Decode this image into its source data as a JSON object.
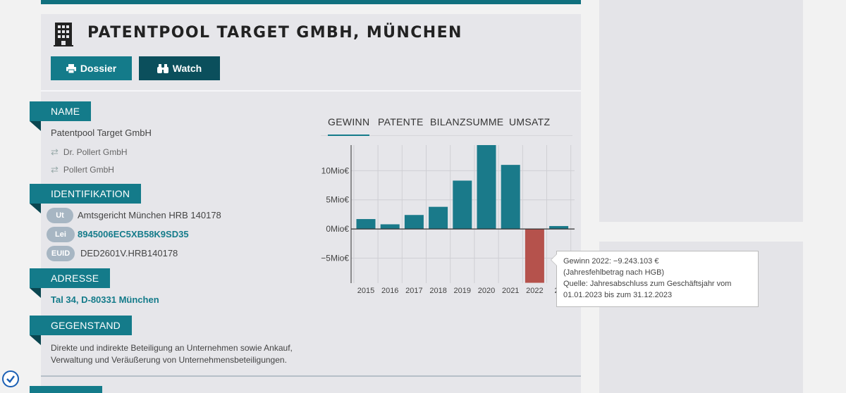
{
  "company": {
    "title": "PATENTPOOL TARGET GMBH, MÜNCHEN",
    "buttons": {
      "dossier": "Dossier",
      "watch": "Watch"
    }
  },
  "sections": {
    "name": {
      "label": "NAME",
      "current": "Patentpool Target GmbH",
      "former": [
        "Dr. Pollert GmbH",
        "Pollert GmbH"
      ]
    },
    "identification": {
      "label": "IDENTIFIKATION",
      "items": [
        {
          "badge": "Ut",
          "value": "Amtsgericht München HRB 140178"
        },
        {
          "badge": "Lei",
          "value": "8945006EC5XB58K9SD35"
        },
        {
          "badge": "EUID",
          "value": "DED2601V.HRB140178"
        }
      ]
    },
    "address": {
      "label": "ADRESSE",
      "value": "Tal 34, D-80331 München"
    },
    "purpose": {
      "label": "GEGENSTAND",
      "value": "Direkte und indirekte Beteiligung an Unternehmen sowie Ankauf, Verwaltung und Veräußerung von Unternehmensbeteiligungen."
    }
  },
  "chart_tabs": [
    "GEWINN",
    "PATENTE",
    "BILANZSUMME",
    "UMSATZ"
  ],
  "chart_data": {
    "type": "bar",
    "categories": [
      "2015",
      "2016",
      "2017",
      "2018",
      "2019",
      "2020",
      "2021",
      "2022",
      "2023"
    ],
    "visible_tick_labels": [
      "2015",
      "2016",
      "2017",
      "2018",
      "2019",
      "2020",
      "2021",
      "2022",
      "20"
    ],
    "values": [
      1.7,
      0.8,
      2.4,
      3.8,
      8.3,
      14.4,
      11.0,
      -9.243103,
      0.5
    ],
    "unit": "Mio€",
    "y_ticks": [
      {
        "value": 10,
        "label": "10Mio€"
      },
      {
        "value": 5,
        "label": "5Mio€"
      },
      {
        "value": 0,
        "label": "0Mio€"
      },
      {
        "value": -5,
        "label": "−5Mio€"
      }
    ],
    "ylim": [
      -9.3,
      14.4
    ],
    "colors": {
      "positive": "#1a7a8a",
      "negative": "#b5524c"
    },
    "highlighted": "2022"
  },
  "tooltip": {
    "line1": "Gewinn 2022:  −9.243.103 €",
    "line2": "(Jahresfehlbetrag nach HGB)",
    "line3": "Quelle: Jahresabschluss zum Geschäftsjahr vom",
    "line4": "01.01.2023 bis zum 31.12.2023"
  },
  "colors": {
    "accent": "#147b8a",
    "dark_accent": "#0b4f5c"
  },
  "icons": {
    "building": "building-icon",
    "print": "print-icon",
    "binoculars": "binoculars-icon",
    "swap": "swap-arrows-icon",
    "badge": "check-badge-icon"
  }
}
